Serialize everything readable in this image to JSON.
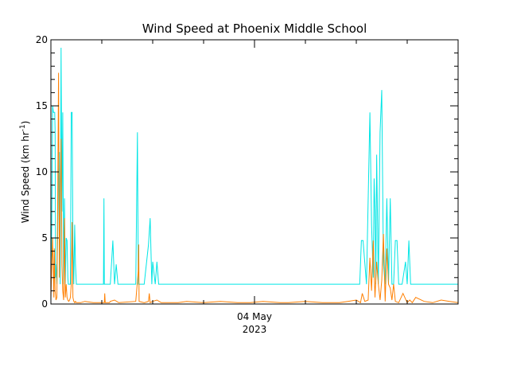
{
  "chart_data": {
    "type": "line",
    "title": "Wind Speed at Phoenix Middle School",
    "ylabel_main": "Wind Speed (km hr",
    "ylabel_sup": "-1",
    "ylabel_close": ")",
    "xlabel_lines": [
      "04 May",
      "2023"
    ],
    "xlim": [
      0,
      48
    ],
    "ylim": [
      0,
      20
    ],
    "xticks_major": [
      24
    ],
    "yticks": [
      0,
      5,
      10,
      15,
      20
    ],
    "ytick_labels": [
      "0",
      "5",
      "10",
      "15",
      "20"
    ],
    "grid": false,
    "legend": "none",
    "series": [
      {
        "color": "#00e5e5",
        "x": [
          0,
          0.1,
          0.2,
          0.3,
          0.4,
          0.45,
          0.5,
          0.55,
          0.6,
          0.7,
          0.8,
          0.9,
          1.0,
          1.1,
          1.2,
          1.3,
          1.4,
          1.5,
          1.6,
          1.7,
          1.8,
          1.9,
          2.0,
          2.05,
          2.1,
          2.2,
          2.3,
          2.4,
          2.5,
          2.6,
          2.7,
          2.8,
          2.9,
          3.0,
          3.2,
          3.4,
          3.6,
          3.7,
          3.75,
          3.8,
          4.0,
          4.5,
          5,
          6.2,
          6.25,
          6.3,
          7,
          7.3,
          7.5,
          7.7,
          7.9,
          8,
          10,
          10.2,
          10.3,
          10.5,
          11,
          11.5,
          11.7,
          11.9,
          12,
          12.3,
          12.5,
          12.7,
          12.9,
          13,
          20,
          30,
          36.4,
          36.6,
          36.8,
          37.2,
          37.6,
          37.8,
          38.0,
          38.1,
          38.2,
          38.3,
          38.4,
          38.6,
          38.8,
          39.0,
          39.2,
          39.4,
          39.6,
          39.8,
          40.0,
          40.2,
          40.4,
          40.6,
          40.8,
          41.0,
          41.2,
          41.4,
          41.8,
          42.0,
          42.2,
          42.4,
          42.6,
          42.8,
          43.2,
          44,
          45,
          48
        ],
        "y": [
          2,
          6,
          15,
          14.5,
          14.5,
          14.5,
          13,
          2,
          3,
          1.5,
          5,
          10,
          11.5,
          1.5,
          19.4,
          7,
          14.5,
          1.5,
          8,
          1.5,
          5,
          4.8,
          2,
          1.5,
          1.5,
          1.5,
          1.5,
          14.5,
          14.5,
          4.5,
          1.5,
          6,
          3,
          1.5,
          1.5,
          1.5,
          1.5,
          1.5,
          1.5,
          1.5,
          1.5,
          1.5,
          1.5,
          1.5,
          8,
          1.5,
          1.5,
          4.8,
          1.5,
          3,
          1.5,
          1.5,
          1.5,
          13,
          1.5,
          1.5,
          1.5,
          4.5,
          6.5,
          1.5,
          3.2,
          1.5,
          3.2,
          1.5,
          1.5,
          1.5,
          1.5,
          1.5,
          1.5,
          4.8,
          4.8,
          1.5,
          14.5,
          6,
          2,
          9.5,
          7,
          1.5,
          11.3,
          1.5,
          13,
          16.2,
          3,
          1.5,
          8,
          1.5,
          8,
          1.5,
          1.5,
          4.8,
          4.8,
          1.5,
          1.5,
          1.5,
          3.2,
          1.5,
          4.8,
          1.5,
          1.5,
          1.5,
          1.5,
          1.5,
          1.5,
          1.5
        ],
        "y_fix": "overwritten below"
      },
      {
        "color": "#ff7f00",
        "x": [
          0,
          0.1,
          0.2,
          0.3,
          0.35,
          0.4,
          0.5,
          0.6,
          0.7,
          0.8,
          0.9,
          1.0,
          1.1,
          1.2,
          1.3,
          1.4,
          1.5,
          1.6,
          1.7,
          1.8,
          1.9,
          2.0,
          2.1,
          2.2,
          2.3,
          2.4,
          2.5,
          2.6,
          2.7,
          2.8,
          2.9,
          3.0,
          3.5,
          4,
          5,
          6.3,
          6.35,
          6.4,
          6.9,
          7,
          7.5,
          8,
          10,
          10.3,
          10.35,
          10.4,
          11,
          11.5,
          11.6,
          11.7,
          12,
          12.5,
          13,
          15,
          16,
          18,
          20,
          22,
          23.5,
          25,
          27,
          28,
          30,
          32,
          34,
          35,
          36,
          36.5,
          36.7,
          37,
          37.4,
          37.6,
          37.8,
          38.0,
          38.2,
          38.4,
          38.6,
          38.8,
          39.0,
          39.2,
          39.4,
          39.6,
          39.8,
          40.0,
          40.2,
          40.4,
          40.6,
          41,
          41.5,
          42,
          42.3,
          42.6,
          43,
          44,
          45,
          46,
          47,
          48
        ],
        "y": [
          0.5,
          3,
          5,
          2,
          0.5,
          4.2,
          1,
          0.3,
          0.5,
          7.5,
          17.5,
          2,
          7.2,
          12.5,
          3,
          1,
          0.3,
          6.5,
          0.5,
          1.5,
          0.5,
          0.3,
          0.2,
          0.3,
          0.5,
          1.5,
          6.2,
          0.5,
          0.2,
          0.1,
          0.2,
          0.1,
          0.1,
          0.2,
          0.1,
          0.1,
          0.8,
          0.1,
          0.1,
          0.2,
          0.3,
          0.1,
          0.2,
          2.5,
          4.5,
          0.2,
          0.1,
          0.2,
          0.8,
          0.1,
          0.2,
          0.3,
          0.1,
          0.1,
          0.2,
          0.1,
          0.2,
          0.1,
          0.1,
          0.2,
          0.1,
          0.1,
          0.2,
          0.1,
          0.1,
          0.2,
          0.3,
          0.1,
          0.8,
          0.2,
          0.3,
          3.5,
          1,
          4.8,
          0.5,
          3.2,
          1.5,
          0.3,
          1.8,
          5.3,
          0.2,
          4.2,
          1.5,
          1.2,
          0.3,
          1.5,
          0.2,
          0.1,
          0.8,
          0.1,
          0.3,
          0.1,
          0.5,
          0.2,
          0.1,
          0.3,
          0.2,
          0.1
        ]
      }
    ]
  }
}
